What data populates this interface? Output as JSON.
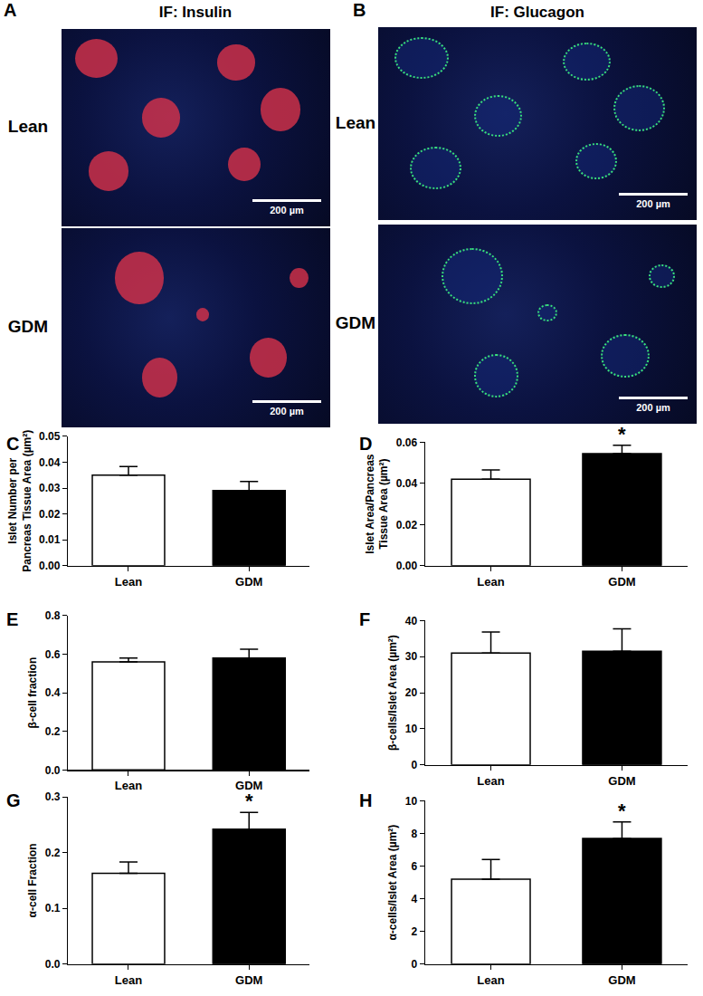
{
  "image_panels": [
    {
      "panel": "A",
      "title": "IF: Insulin",
      "rows": [
        "Lean",
        "GDM"
      ],
      "scale_bar": "200 µm",
      "stain_color": "#d8324a"
    },
    {
      "panel": "B",
      "title": "IF: Glucagon",
      "rows": [
        "Lean",
        "GDM"
      ],
      "scale_bar": "200 µm",
      "stain_color": "#39e07a"
    }
  ],
  "chart_data": [
    {
      "panel": "C",
      "type": "bar",
      "categories": [
        "Lean",
        "GDM"
      ],
      "values": [
        0.035,
        0.029
      ],
      "errors": [
        0.0033,
        0.0035
      ],
      "colors": [
        "#ffffff",
        "#000000"
      ],
      "ylabel": "Islet Number per\nPancreas Tissue Area (µm²)",
      "ylim": [
        0,
        0.05
      ],
      "yticks": [
        {
          "value": 0,
          "label": "0.00"
        },
        0.01,
        0.02,
        0.03,
        0.04,
        0.05
      ],
      "significance": [
        null,
        null
      ]
    },
    {
      "panel": "D",
      "type": "bar",
      "categories": [
        "Lean",
        "GDM"
      ],
      "values": [
        0.042,
        0.0545
      ],
      "errors": [
        0.0045,
        0.004
      ],
      "colors": [
        "#ffffff",
        "#000000"
      ],
      "ylabel": "Islet Area/Pancreas\nTissue Area (µm²)",
      "ylim": [
        0,
        0.06
      ],
      "yticks": [
        {
          "value": 0,
          "label": "0.00"
        },
        0.02,
        0.04,
        0.06
      ],
      "significance": [
        null,
        "*"
      ]
    },
    {
      "panel": "E",
      "type": "bar",
      "categories": [
        "Lean",
        "GDM"
      ],
      "values": [
        0.56,
        0.58
      ],
      "errors": [
        0.02,
        0.045
      ],
      "colors": [
        "#ffffff",
        "#000000"
      ],
      "ylabel": "β-cell fraction",
      "ylim": [
        0,
        0.8
      ],
      "yticks": [
        {
          "value": 0,
          "label": "0.0"
        },
        0.2,
        0.4,
        0.6,
        0.8
      ],
      "significance": [
        null,
        null
      ]
    },
    {
      "panel": "F",
      "type": "bar",
      "categories": [
        "Lean",
        "GDM"
      ],
      "values": [
        31,
        31.5
      ],
      "errors": [
        5.8,
        6.2
      ],
      "colors": [
        "#ffffff",
        "#000000"
      ],
      "ylabel": "β-cells/Islet Area (µm²)",
      "ylim": [
        0,
        40
      ],
      "yticks": [
        0,
        10,
        20,
        30,
        40
      ],
      "significance": [
        null,
        null
      ]
    },
    {
      "panel": "G",
      "type": "bar",
      "categories": [
        "Lean",
        "GDM"
      ],
      "values": [
        0.163,
        0.242
      ],
      "errors": [
        0.02,
        0.03
      ],
      "colors": [
        "#ffffff",
        "#000000"
      ],
      "ylabel": "α-cell Fraction",
      "ylim": [
        0,
        0.3
      ],
      "yticks": [
        {
          "value": 0,
          "label": "0.0"
        },
        0.1,
        0.2,
        0.3
      ],
      "significance": [
        null,
        "*"
      ]
    },
    {
      "panel": "H",
      "type": "bar",
      "categories": [
        "Lean",
        "GDM"
      ],
      "values": [
        5.2,
        7.7
      ],
      "errors": [
        1.2,
        1.0
      ],
      "colors": [
        "#ffffff",
        "#000000"
      ],
      "ylabel": "α-cells/Islet Area (µm²)",
      "ylim": [
        0,
        10
      ],
      "yticks": [
        0,
        2,
        4,
        6,
        8,
        10
      ],
      "significance": [
        null,
        "*"
      ]
    }
  ]
}
